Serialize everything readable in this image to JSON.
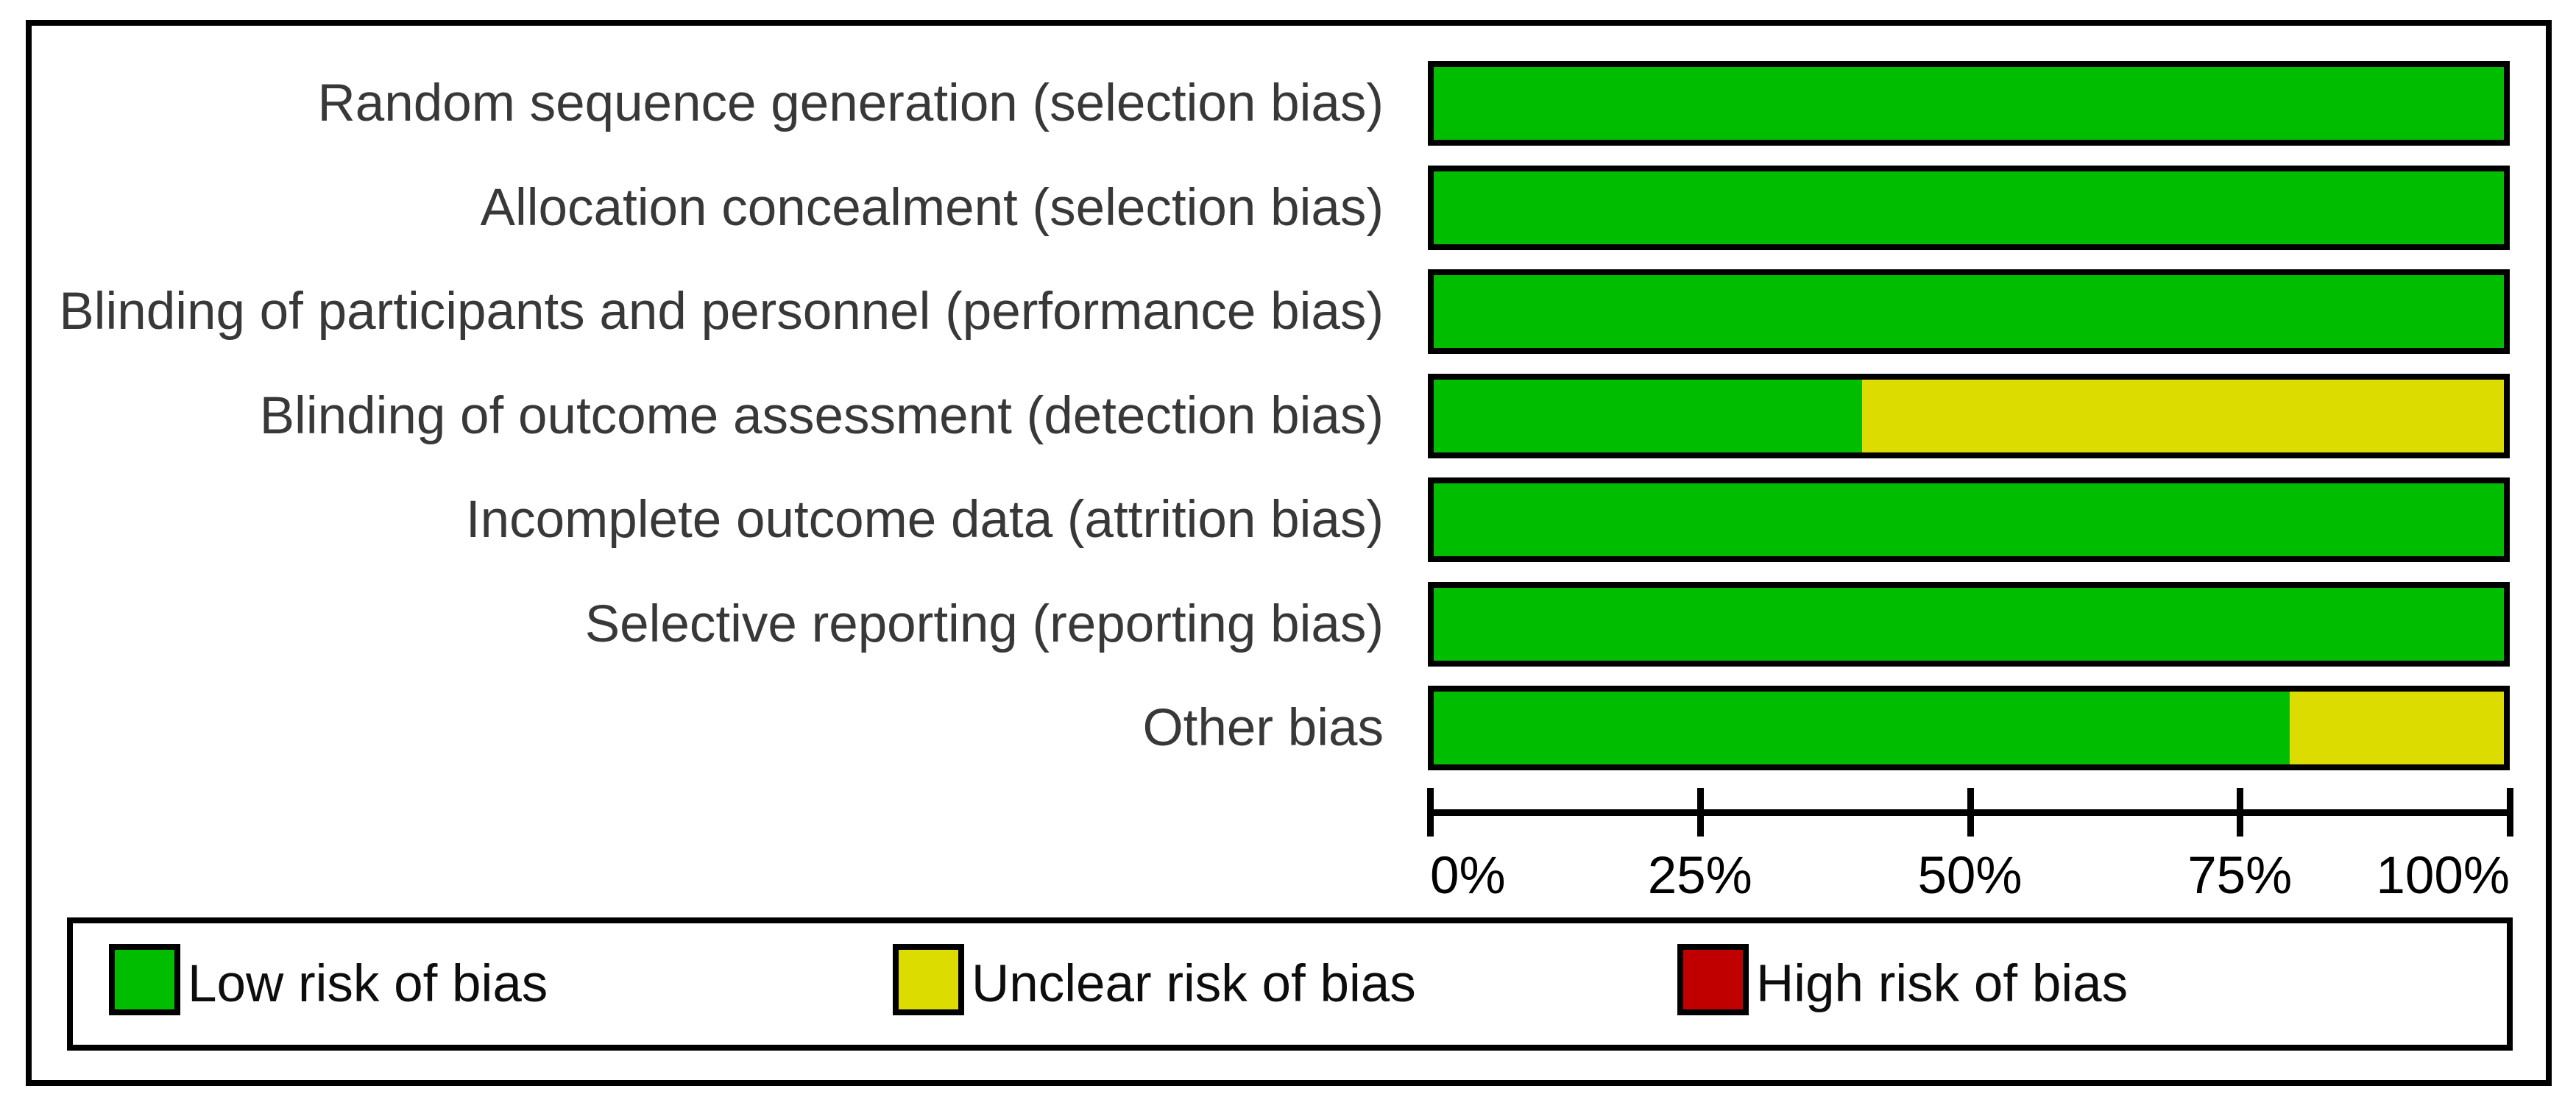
{
  "figure": {
    "background": "#ffffff",
    "frame_color": "#000000"
  },
  "chart_data": {
    "type": "bar",
    "orientation": "horizontal",
    "stacked": true,
    "title": "",
    "xlabel": "",
    "ylabel": "",
    "x_range_percent": [
      0,
      100
    ],
    "grid": false,
    "categories": [
      "Random sequence generation (selection bias)",
      "Allocation concealment (selection bias)",
      "Blinding of participants and personnel (performance bias)",
      "Blinding of outcome assessment (detection bias)",
      "Incomplete outcome data (attrition bias)",
      "Selective reporting (reporting bias)",
      "Other bias"
    ],
    "series": [
      {
        "name": "Low risk of bias",
        "color": "#00bd00",
        "values": [
          100,
          100,
          100,
          40,
          100,
          100,
          80
        ]
      },
      {
        "name": "Unclear risk of bias",
        "color": "#dcdc00",
        "values": [
          0,
          0,
          0,
          60,
          0,
          0,
          20
        ]
      },
      {
        "name": "High risk of bias",
        "color": "#c00000",
        "values": [
          0,
          0,
          0,
          0,
          0,
          0,
          0
        ]
      }
    ],
    "x_axis": {
      "ticks": [
        "0%",
        "25%",
        "50%",
        "75%",
        "100%"
      ],
      "tick_values": [
        0,
        25,
        50,
        75,
        100
      ]
    },
    "legend": {
      "position": "bottom",
      "entries": [
        {
          "label": "Low risk of bias",
          "color": "#00bd00"
        },
        {
          "label": "Unclear risk of bias",
          "color": "#dcdc00"
        },
        {
          "label": "High risk of bias",
          "color": "#c00000"
        }
      ]
    }
  }
}
